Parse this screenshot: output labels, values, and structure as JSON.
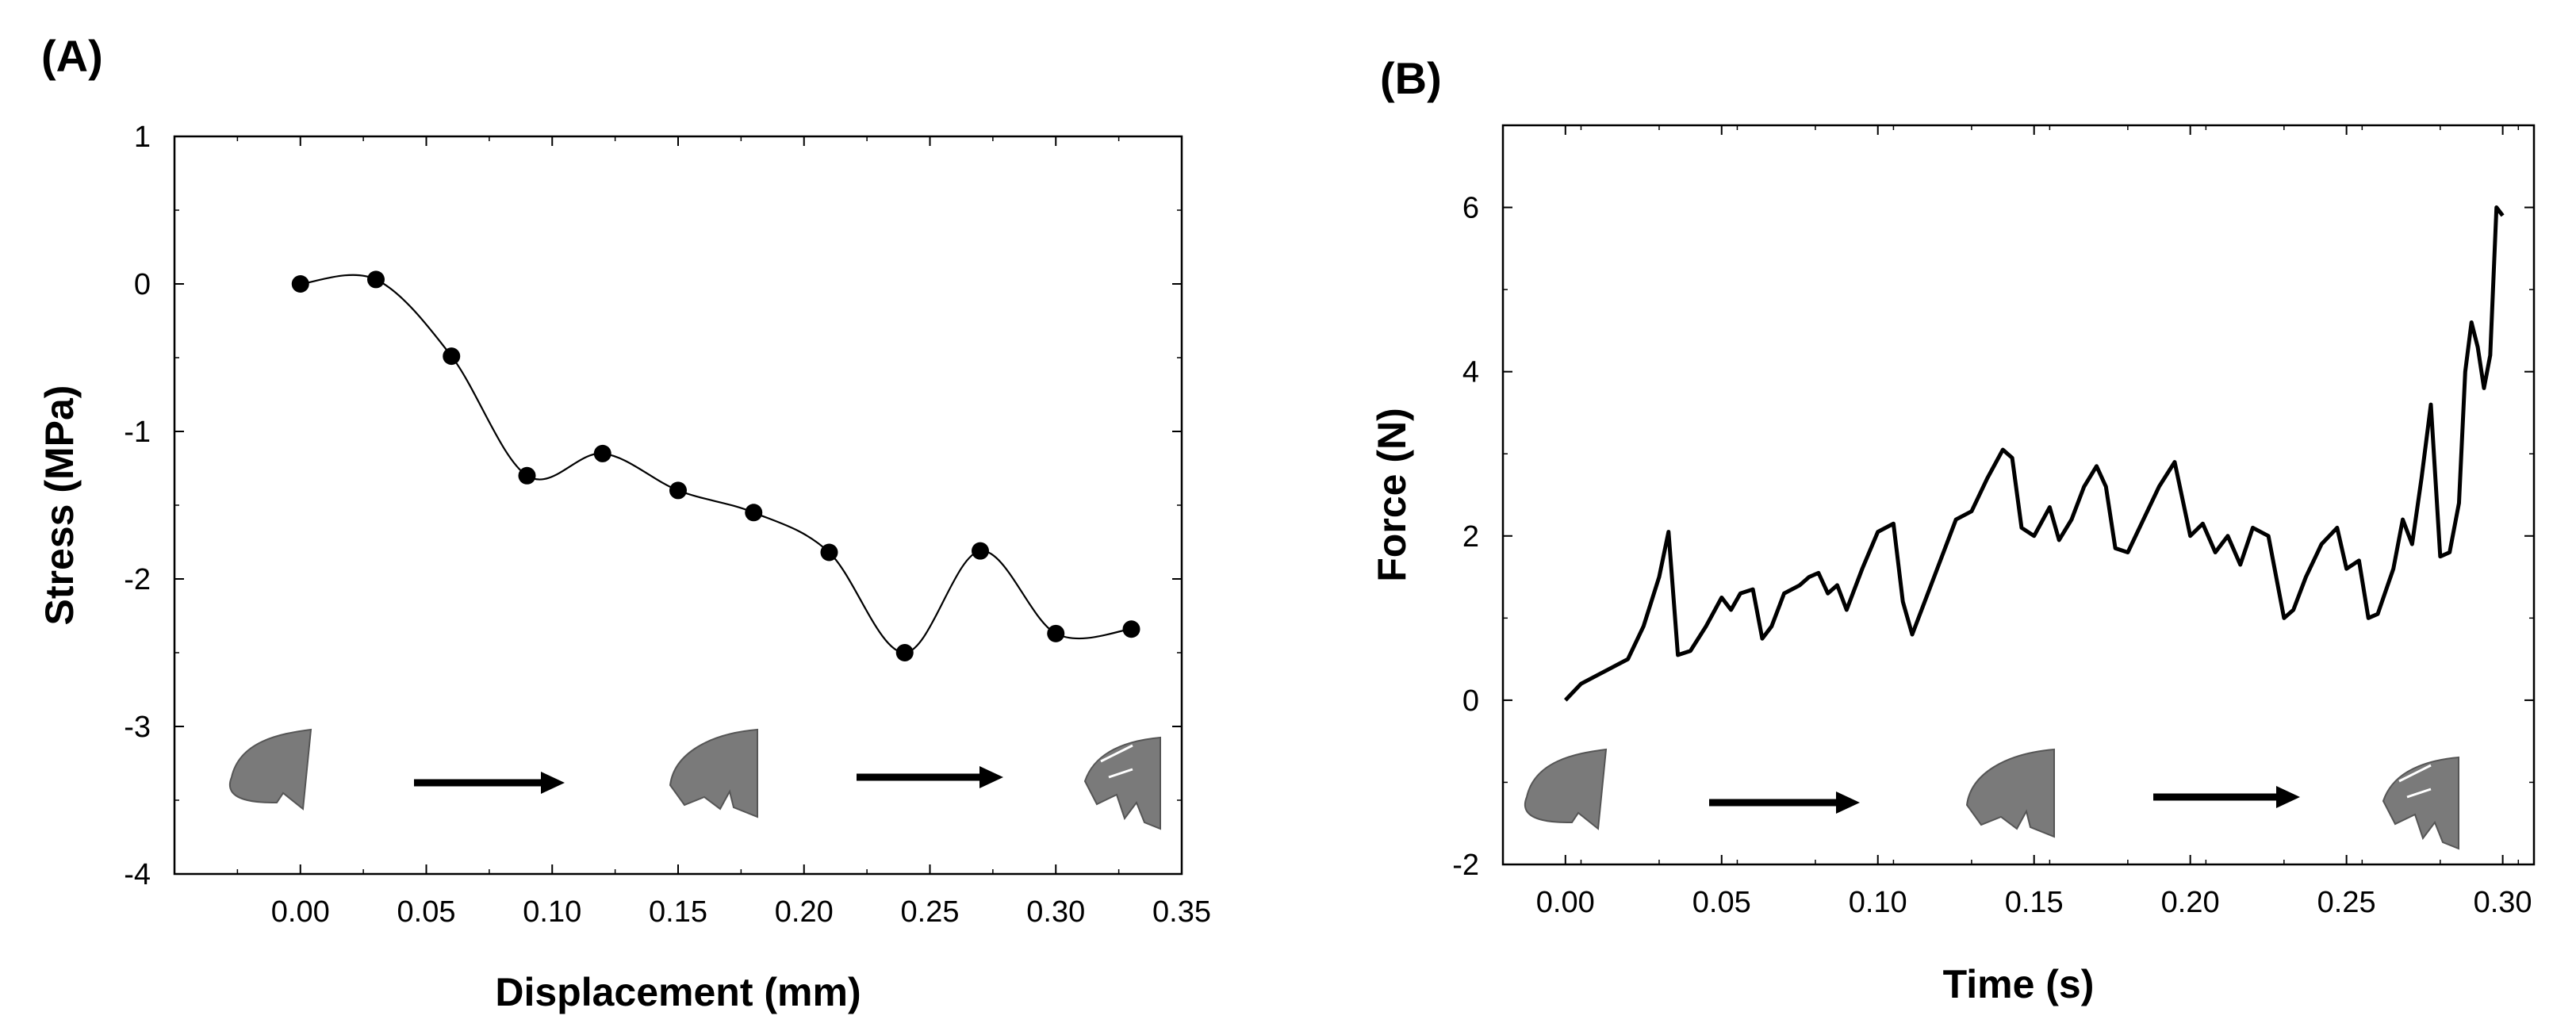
{
  "colors": {
    "line": "#000000",
    "marker": "#000000",
    "specimen": "#7a7a7a",
    "background": "#ffffff"
  },
  "chart_data": [
    {
      "panel_label": "(A)",
      "type": "line",
      "xlabel": "Displacement (mm)",
      "ylabel": "Stress (MPa)",
      "xlim": [
        -0.05,
        0.35
      ],
      "ylim": [
        -4,
        1
      ],
      "xticks": [
        "0.00",
        "0.05",
        "0.10",
        "0.15",
        "0.20",
        "0.25",
        "0.30",
        "0.35"
      ],
      "yticks": [
        "1",
        "0",
        "-1",
        "-2",
        "-3",
        "-4"
      ],
      "series": [
        {
          "name": "Stress",
          "markers": true,
          "x": [
            0.0,
            0.03,
            0.06,
            0.09,
            0.12,
            0.15,
            0.18,
            0.21,
            0.24,
            0.27,
            0.3,
            0.33
          ],
          "y": [
            0.0,
            0.03,
            -0.49,
            -1.3,
            -1.15,
            -1.4,
            -1.55,
            -1.82,
            -2.5,
            -1.81,
            -2.37,
            -2.34
          ]
        }
      ],
      "annotations": [
        {
          "type": "specimen-sequence",
          "description": "tooth specimen shapes with arrows showing progressive fracture"
        }
      ]
    },
    {
      "panel_label": "(B)",
      "type": "line",
      "xlabel": "Time (s)",
      "ylabel": "Force (N)",
      "xlim": [
        -0.02,
        0.31
      ],
      "ylim": [
        -2,
        7
      ],
      "xticks": [
        "0.00",
        "0.05",
        "0.10",
        "0.15",
        "0.20",
        "0.25",
        "0.30"
      ],
      "yticks": [
        "6",
        "4",
        "2",
        "0",
        "-2"
      ],
      "series": [
        {
          "name": "Force",
          "markers": false,
          "x": [
            0.0,
            0.005,
            0.01,
            0.02,
            0.025,
            0.03,
            0.033,
            0.036,
            0.04,
            0.045,
            0.05,
            0.053,
            0.056,
            0.06,
            0.063,
            0.066,
            0.07,
            0.075,
            0.078,
            0.081,
            0.084,
            0.087,
            0.09,
            0.095,
            0.1,
            0.105,
            0.108,
            0.111,
            0.115,
            0.12,
            0.125,
            0.13,
            0.135,
            0.14,
            0.143,
            0.146,
            0.15,
            0.155,
            0.158,
            0.162,
            0.166,
            0.17,
            0.173,
            0.176,
            0.18,
            0.185,
            0.19,
            0.195,
            0.2,
            0.204,
            0.208,
            0.212,
            0.216,
            0.22,
            0.225,
            0.23,
            0.233,
            0.237,
            0.242,
            0.247,
            0.25,
            0.254,
            0.257,
            0.26,
            0.265,
            0.268,
            0.271,
            0.274,
            0.277,
            0.28,
            0.283,
            0.286,
            0.288,
            0.29,
            0.292,
            0.294,
            0.296,
            0.298,
            0.3
          ],
          "y": [
            0.0,
            0.2,
            0.3,
            0.5,
            0.9,
            1.5,
            2.05,
            0.55,
            0.6,
            0.9,
            1.25,
            1.1,
            1.3,
            1.35,
            0.75,
            0.9,
            1.3,
            1.4,
            1.5,
            1.55,
            1.3,
            1.4,
            1.1,
            1.6,
            2.05,
            2.15,
            1.2,
            0.8,
            1.2,
            1.7,
            2.2,
            2.3,
            2.7,
            3.05,
            2.95,
            2.1,
            2.0,
            2.35,
            1.95,
            2.2,
            2.6,
            2.85,
            2.6,
            1.85,
            1.8,
            2.2,
            2.6,
            2.9,
            2.0,
            2.15,
            1.8,
            2.0,
            1.65,
            2.1,
            2.0,
            1.0,
            1.1,
            1.5,
            1.9,
            2.1,
            1.6,
            1.7,
            1.0,
            1.05,
            1.6,
            2.2,
            1.9,
            2.7,
            3.6,
            1.75,
            1.8,
            2.4,
            4.0,
            4.6,
            4.3,
            3.8,
            4.2,
            6.0,
            5.9
          ]
        }
      ],
      "annotations": [
        {
          "type": "specimen-sequence",
          "description": "tooth specimen shapes with arrows showing progressive fracture"
        }
      ]
    }
  ]
}
